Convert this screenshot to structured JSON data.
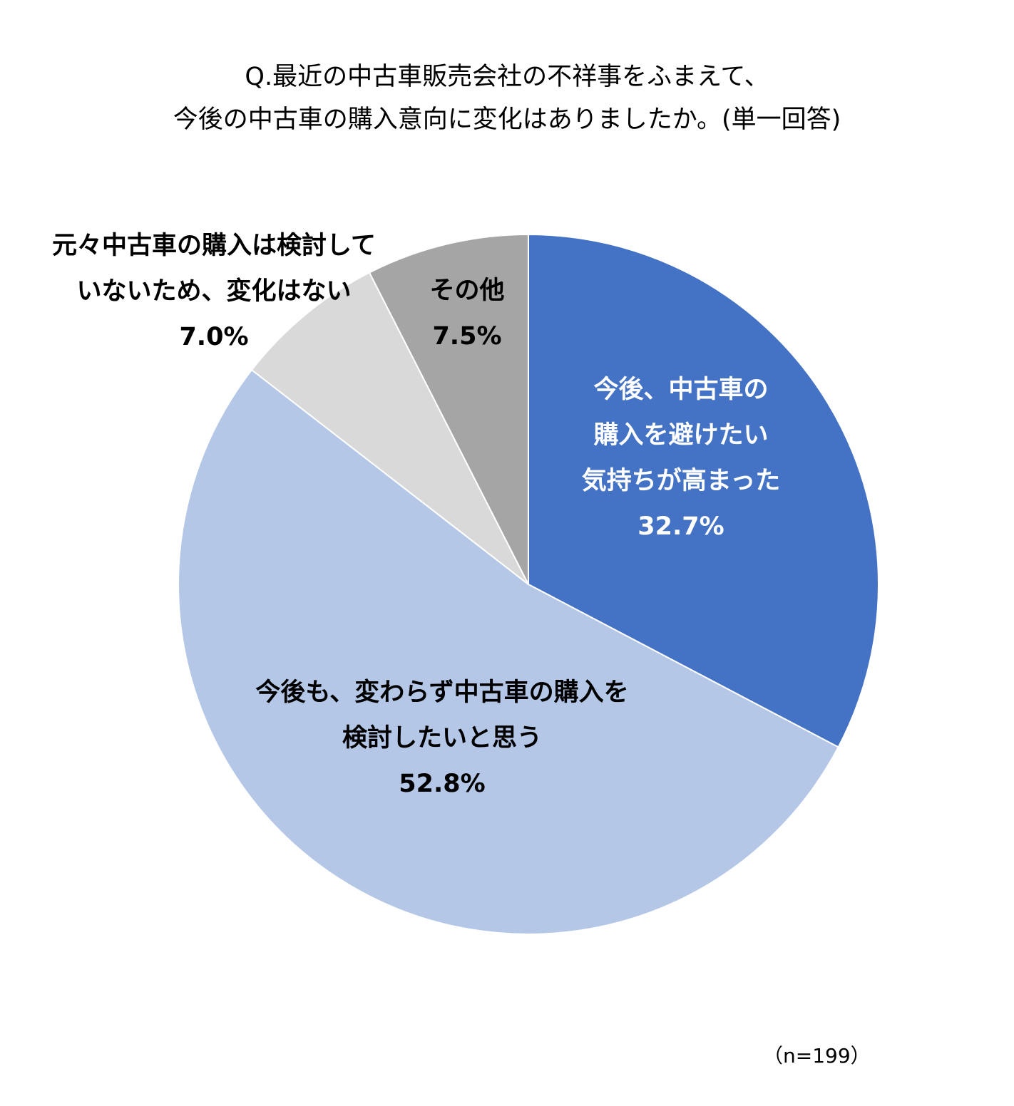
{
  "title": {
    "line1": "Q.最近の中古車販売会社の不祥事をふまえて、",
    "line2": "今後の中古車の購入意向に変化はありましたか。(単一回答)"
  },
  "sample_note": "（n=199）",
  "chart_data": {
    "type": "pie",
    "title": "Q.最近の中古車販売会社の不祥事をふまえて、今後の中古車の購入意向に変化はありましたか。(単一回答)",
    "start_angle_deg": 0,
    "direction": "clockwise",
    "slices": [
      {
        "key": "avoid",
        "label_lines": [
          "今後、中古車の",
          "購入を避けたい",
          "気持ちが高まった"
        ],
        "value": 32.7,
        "value_label": "32.7%",
        "color": "#4472C4",
        "text_color": "#FFFFFF"
      },
      {
        "key": "continue",
        "label_lines": [
          "今後も、変わらず中古車の購入を",
          "検討したいと思う"
        ],
        "value": 52.8,
        "value_label": "52.8%",
        "color": "#B4C7E7",
        "text_color": "#000000"
      },
      {
        "key": "notconsidering",
        "label_lines": [
          "元々中古車の購入は検討して",
          "いないため、変化はない"
        ],
        "value": 7.0,
        "value_label": "7.0%",
        "color": "#D9D9D9",
        "text_color": "#000000"
      },
      {
        "key": "other",
        "label_lines": [
          "その他"
        ],
        "value": 7.5,
        "value_label": "7.5%",
        "color": "#A5A5A5",
        "text_color": "#000000"
      }
    ]
  }
}
